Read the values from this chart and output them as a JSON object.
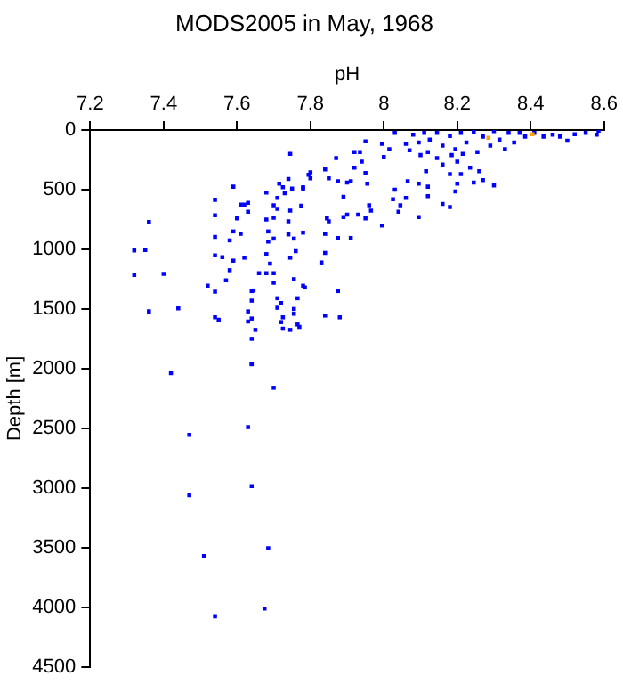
{
  "chart_data": {
    "type": "scatter",
    "title": "MODS2005 in May, 1968",
    "xlabel": "pH",
    "ylabel": "Depth [m]",
    "series": [
      {
        "color": "#0000ff",
        "x": [
          7.36,
          7.32,
          7.35,
          7.32,
          7.4,
          7.36,
          7.44,
          7.52,
          7.54,
          7.54,
          7.54,
          7.54,
          7.54,
          7.54,
          7.55,
          7.59,
          7.6,
          7.61,
          7.62,
          7.63,
          7.63,
          7.59,
          7.61,
          7.58,
          7.56,
          7.59,
          7.58,
          7.57,
          7.62,
          7.64,
          7.645,
          7.66,
          7.64,
          7.63,
          7.63,
          7.64,
          7.65,
          7.64,
          7.64,
          7.68,
          7.68,
          7.7,
          7.7,
          7.71,
          7.715,
          7.71,
          7.685,
          7.685,
          7.7,
          7.68,
          7.69,
          7.68,
          7.7,
          7.7,
          7.71,
          7.71,
          7.72,
          7.725,
          7.725,
          7.72,
          7.74,
          7.74,
          7.745,
          7.73,
          7.74,
          7.745,
          7.725,
          7.75,
          7.755,
          7.76,
          7.745,
          7.755,
          7.755,
          7.755,
          7.765,
          7.745,
          7.77,
          7.765,
          7.78,
          7.785,
          7.775,
          7.795,
          7.78,
          7.78,
          7.42,
          7.64,
          7.7,
          7.47,
          7.63,
          7.47,
          7.64,
          7.51,
          7.685,
          7.54,
          7.675,
          7.78,
          7.8,
          7.8,
          7.84,
          7.85,
          7.87,
          7.875,
          7.89,
          7.9,
          7.91,
          7.92,
          7.92,
          7.935,
          7.94,
          7.95,
          7.95,
          7.955,
          7.96,
          7.965,
          7.95,
          7.93,
          7.9,
          7.89,
          7.85,
          7.845,
          7.875,
          7.91,
          7.84,
          7.84,
          7.83,
          7.875,
          7.84,
          7.88,
          7.995,
          8.0,
          8.015,
          8.025,
          8.03,
          8.04,
          8.045,
          8.06,
          8.065,
          8.095,
          8.095,
          8.1,
          8.115,
          8.12,
          8.12,
          8.16,
          8.18,
          8.195,
          8.2,
          8.21,
          8.235,
          8.245,
          8.27,
          8.3,
          8.26,
          7.995,
          8.03,
          8.06,
          8.07,
          8.08,
          8.095,
          8.11,
          8.125,
          8.145,
          8.16,
          8.18,
          8.185,
          8.2,
          8.21,
          8.225,
          8.245,
          8.255,
          8.27,
          8.29,
          8.3,
          8.315,
          8.33,
          8.34,
          8.355,
          8.37,
          8.385,
          8.41,
          8.435,
          8.46,
          8.48,
          8.5,
          8.52,
          8.55,
          8.58,
          8.585,
          8.16,
          8.18,
          8.215,
          8.195,
          8.145,
          8.12
        ],
        "values": [
          770,
          1010,
          1005,
          1215,
          1205,
          1520,
          1495,
          1305,
          585,
          715,
          895,
          1050,
          1355,
          1570,
          1590,
          475,
          740,
          625,
          625,
          610,
          685,
          850,
          870,
          925,
          1065,
          1095,
          1175,
          1260,
          1070,
          1350,
          1345,
          1200,
          1430,
          1520,
          1605,
          1580,
          1675,
          1750,
          1960,
          525,
          750,
          735,
          630,
          570,
          450,
          660,
          850,
          935,
          910,
          1040,
          1120,
          1200,
          1200,
          1280,
          1410,
          1490,
          1450,
          1570,
          1665,
          1610,
          875,
          765,
          675,
          530,
          410,
          200,
          480,
          490,
          910,
          1015,
          1070,
          1250,
          1500,
          1540,
          1630,
          1675,
          1650,
          1410,
          1305,
          1320,
          635,
          375,
          480,
          860,
          2037,
          1963,
          2160,
          2555,
          2490,
          3060,
          2985,
          3570,
          3505,
          4075,
          4010,
          490,
          355,
          405,
          330,
          405,
          235,
          430,
          560,
          440,
          430,
          185,
          315,
          185,
          265,
          95,
          360,
          450,
          630,
          675,
          740,
          710,
          710,
          730,
          765,
          740,
          905,
          905,
          870,
          1030,
          1110,
          1350,
          1555,
          1570,
          800,
          225,
          160,
          580,
          500,
          685,
          630,
          570,
          430,
          450,
          730,
          210,
          345,
          555,
          475,
          620,
          645,
          515,
          450,
          370,
          315,
          440,
          420,
          465,
          345,
          115,
          25,
          115,
          170,
          40,
          105,
          25,
          80,
          25,
          130,
          50,
          210,
          265,
          25,
          105,
          15,
          185,
          55,
          130,
          10,
          80,
          160,
          25,
          105,
          25,
          55,
          25,
          55,
          40,
          55,
          90,
          35,
          25,
          40,
          5,
          290,
          370,
          200,
          160,
          235,
          185
        ]
      },
      {
        "color": "#ffa500",
        "x": [
          8.285,
          8.405
        ],
        "values": [
          65,
          35
        ]
      }
    ],
    "xlim": [
      7.2,
      8.6
    ],
    "xticks": [
      7.2,
      7.4,
      7.6,
      7.8,
      8,
      8.2,
      8.4,
      8.6
    ],
    "ylim": [
      4500,
      0
    ],
    "yticks": [
      0,
      500,
      1000,
      1500,
      2000,
      2500,
      3000,
      3500,
      4000,
      4500
    ],
    "grid": false,
    "legend": false,
    "marker": "square"
  }
}
